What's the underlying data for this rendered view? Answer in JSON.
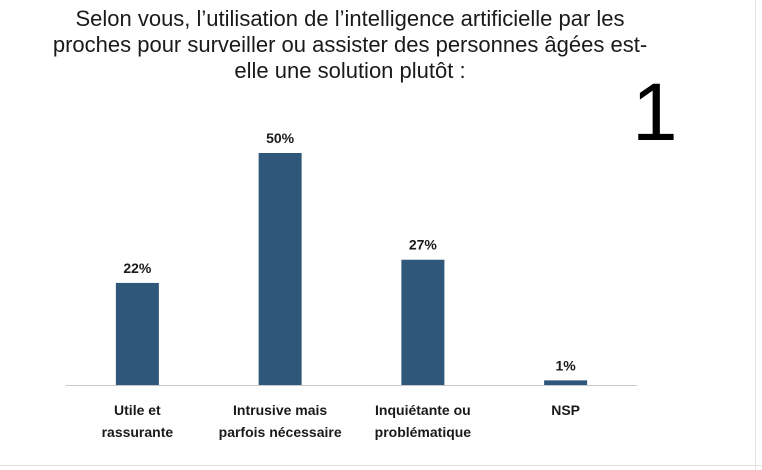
{
  "title": "Selon vous, l’utilisation de l’intelligence artificielle par les proches pour surveiller ou assister des personnes âgées est-elle une solution plutôt :",
  "slide_number": "1",
  "colors": {
    "bar": "#2e5779",
    "axis": "#c8c8c8",
    "text": "#1a1a1a"
  },
  "chart_data": {
    "type": "bar",
    "categories": [
      [
        "Utile et",
        "rassurante"
      ],
      [
        "Intrusive mais",
        "parfois nécessaire"
      ],
      [
        "Inquiétante ou",
        "problématique"
      ],
      [
        "NSP"
      ]
    ],
    "values": [
      22,
      50,
      27,
      1
    ],
    "value_labels": [
      "22%",
      "50%",
      "27%",
      "1%"
    ],
    "ylim": [
      0,
      50
    ],
    "grid": false,
    "legend": "none"
  }
}
